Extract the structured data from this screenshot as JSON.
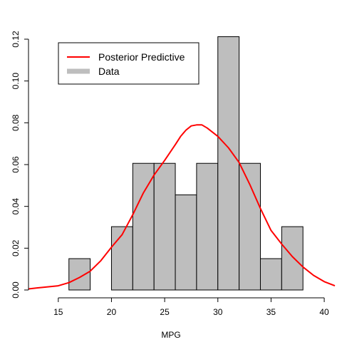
{
  "chart_data": {
    "type": "bar",
    "title": "",
    "xlabel": "MPG",
    "ylabel": "",
    "xlim": [
      12.2,
      41
    ],
    "ylim": [
      0,
      0.12
    ],
    "x_ticks": [
      15,
      20,
      25,
      30,
      35,
      40
    ],
    "x_tick_labels": [
      "15",
      "20",
      "25",
      "30",
      "35",
      "40"
    ],
    "y_ticks": [
      0,
      0.02,
      0.04,
      0.06,
      0.08,
      0.1,
      0.12
    ],
    "y_tick_labels": [
      "0.00",
      "0.02",
      "0.04",
      "0.06",
      "0.08",
      "0.10",
      "0.12"
    ],
    "grid": false,
    "legend": {
      "position": "top-left",
      "entries": [
        {
          "label": "Posterior Predictive",
          "color": "#ff0000"
        },
        {
          "label": "Data",
          "color": "#bebebe"
        }
      ]
    },
    "histogram": {
      "name": "Data",
      "color": "#bebebe",
      "bins": [
        {
          "x0": 16,
          "x1": 18,
          "density": 0.015
        },
        {
          "x0": 18,
          "x1": 20,
          "density": 0.0
        },
        {
          "x0": 20,
          "x1": 22,
          "density": 0.0303
        },
        {
          "x0": 22,
          "x1": 24,
          "density": 0.0606
        },
        {
          "x0": 24,
          "x1": 26,
          "density": 0.0606
        },
        {
          "x0": 26,
          "x1": 28,
          "density": 0.0455
        },
        {
          "x0": 28,
          "x1": 30,
          "density": 0.0606
        },
        {
          "x0": 30,
          "x1": 32,
          "density": 0.1212
        },
        {
          "x0": 32,
          "x1": 34,
          "density": 0.0606
        },
        {
          "x0": 34,
          "x1": 36,
          "density": 0.015
        },
        {
          "x0": 36,
          "x1": 38,
          "density": 0.0303
        }
      ]
    },
    "density_curve": {
      "name": "Posterior Predictive",
      "color": "#ff0000",
      "x": [
        12.2,
        13,
        14,
        15,
        16,
        17,
        18,
        19,
        20,
        21,
        22,
        23,
        24,
        25,
        26,
        26.5,
        27,
        27.5,
        28,
        28.5,
        29,
        30,
        31,
        32,
        33,
        34,
        35,
        36,
        37,
        38,
        39,
        40,
        41
      ],
      "y": [
        0.0005,
        0.001,
        0.0015,
        0.002,
        0.0035,
        0.006,
        0.009,
        0.014,
        0.0205,
        0.0265,
        0.036,
        0.0465,
        0.055,
        0.062,
        0.0695,
        0.0735,
        0.0765,
        0.0785,
        0.079,
        0.079,
        0.0775,
        0.0735,
        0.068,
        0.061,
        0.0505,
        0.039,
        0.0285,
        0.022,
        0.016,
        0.011,
        0.007,
        0.004,
        0.002
      ]
    }
  }
}
